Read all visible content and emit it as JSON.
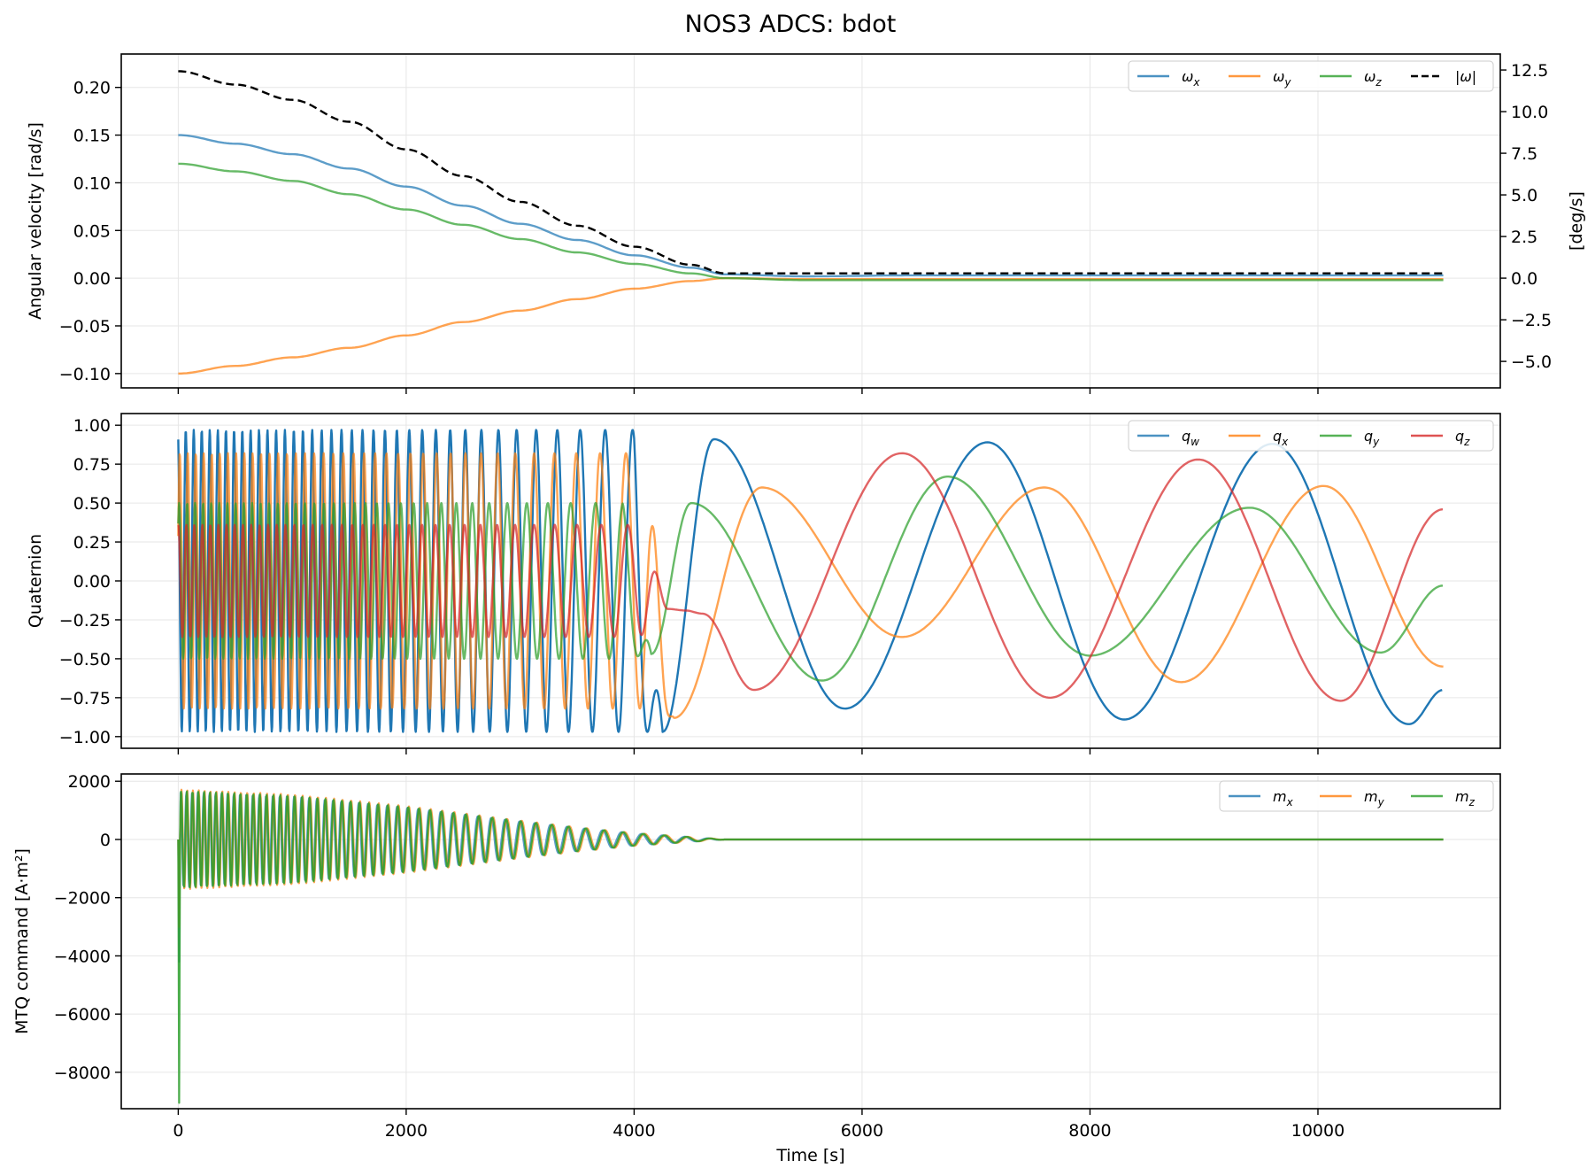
{
  "title": "NOS3 ADCS: bdot",
  "colors": {
    "blue": "#1f77b4",
    "orange": "#ff7f0e",
    "green": "#2ca02c",
    "red": "#d62728",
    "black": "#000000",
    "grid": "#e6e6e6"
  },
  "chart_data": [
    {
      "type": "line",
      "title": "",
      "xlabel": "",
      "ylabel": "Angular velocity [rad/s]",
      "y2label": "[deg/s]",
      "xlim": [
        -500,
        11600
      ],
      "ylim": [
        -0.115,
        0.235
      ],
      "y2lim": [
        -6.59,
        13.46
      ],
      "xticks": [
        0,
        2000,
        4000,
        6000,
        8000,
        10000
      ],
      "yticks": [
        -0.1,
        -0.05,
        0.0,
        0.05,
        0.1,
        0.15,
        0.2
      ],
      "ytick_labels": [
        "−0.10",
        "−0.05",
        "0.00",
        "0.05",
        "0.10",
        "0.15",
        "0.20"
      ],
      "y2ticks": [
        -5.0,
        -2.5,
        0.0,
        2.5,
        5.0,
        7.5,
        10.0,
        12.5
      ],
      "y2tick_labels": [
        "−5.0",
        "−2.5",
        "0.0",
        "2.5",
        "5.0",
        "7.5",
        "10.0",
        "12.5"
      ],
      "grid": true,
      "legend": "top-right",
      "series": [
        {
          "name": "ωx",
          "label_main": "ω",
          "label_sub": "x",
          "color": "#1f77b4",
          "style": "solid",
          "axis": "left",
          "x": [
            0,
            500,
            1000,
            1500,
            2000,
            2500,
            3000,
            3500,
            4000,
            4500,
            4800,
            5500,
            6500,
            8000,
            9500,
            11100
          ],
          "y": [
            0.15,
            0.141,
            0.13,
            0.115,
            0.096,
            0.076,
            0.057,
            0.04,
            0.024,
            0.011,
            0.004,
            0.002,
            0.003,
            0.003,
            0.003,
            0.003
          ]
        },
        {
          "name": "ωy",
          "label_main": "ω",
          "label_sub": "y",
          "color": "#ff7f0e",
          "style": "solid",
          "axis": "left",
          "x": [
            0,
            500,
            1000,
            1500,
            2000,
            2500,
            3000,
            3500,
            4000,
            4500,
            4800,
            5500,
            6500,
            8000,
            9500,
            11100
          ],
          "y": [
            -0.1,
            -0.092,
            -0.083,
            -0.073,
            -0.06,
            -0.046,
            -0.034,
            -0.022,
            -0.011,
            -0.003,
            0.0,
            -0.001,
            -0.001,
            -0.001,
            -0.001,
            -0.001
          ]
        },
        {
          "name": "ωz",
          "label_main": "ω",
          "label_sub": "z",
          "color": "#2ca02c",
          "style": "solid",
          "axis": "left",
          "x": [
            0,
            500,
            1000,
            1500,
            2000,
            2500,
            3000,
            3500,
            4000,
            4500,
            4800,
            5500,
            6500,
            8000,
            9500,
            11100
          ],
          "y": [
            0.12,
            0.112,
            0.102,
            0.088,
            0.072,
            0.056,
            0.041,
            0.027,
            0.015,
            0.005,
            0.0,
            -0.002,
            -0.002,
            -0.002,
            -0.002,
            -0.002
          ]
        },
        {
          "name": "|ω|",
          "label_main": "|ω|",
          "label_sub": "",
          "color": "#000000",
          "style": "dashed",
          "axis": "left",
          "x": [
            0,
            500,
            1000,
            1500,
            2000,
            2500,
            3000,
            3500,
            4000,
            4500,
            4800,
            5500,
            6500,
            8000,
            9500,
            11100
          ],
          "y": [
            0.217,
            0.203,
            0.187,
            0.164,
            0.135,
            0.107,
            0.08,
            0.055,
            0.033,
            0.014,
            0.005,
            0.005,
            0.005,
            0.005,
            0.005,
            0.005
          ]
        }
      ]
    },
    {
      "type": "line",
      "title": "",
      "xlabel": "",
      "ylabel": "Quaternion",
      "xlim": [
        -500,
        11600
      ],
      "ylim": [
        -1.075,
        1.075
      ],
      "xticks": [
        0,
        2000,
        4000,
        6000,
        8000,
        10000
      ],
      "yticks": [
        -1.0,
        -0.75,
        -0.5,
        -0.25,
        0.0,
        0.25,
        0.5,
        0.75,
        1.0
      ],
      "ytick_labels": [
        "−1.00",
        "−0.75",
        "−0.50",
        "−0.25",
        "0.00",
        "0.25",
        "0.50",
        "0.75",
        "1.00"
      ],
      "grid": true,
      "legend": "top-right",
      "oscillation_region": {
        "x_end": 4400,
        "period_start": 70,
        "period_end": 280,
        "amplitudes": {
          "qw": 0.97,
          "qx": 0.82,
          "qy": 0.5,
          "qz": 0.36
        }
      },
      "series": [
        {
          "name": "qw",
          "label_main": "q",
          "label_sub": "w",
          "color": "#1f77b4",
          "style": "solid",
          "x": [
            4250,
            4700,
            5850,
            7100,
            8300,
            9600,
            10800,
            11100
          ],
          "y": [
            -0.97,
            0.91,
            -0.82,
            0.89,
            -0.89,
            0.88,
            -0.92,
            -0.7
          ]
        },
        {
          "name": "qx",
          "label_main": "q",
          "label_sub": "x",
          "color": "#ff7f0e",
          "style": "solid",
          "x": [
            4350,
            5120,
            6350,
            7600,
            8800,
            10050,
            11100
          ],
          "y": [
            -0.88,
            0.6,
            -0.36,
            0.6,
            -0.65,
            0.61,
            -0.55
          ]
        },
        {
          "name": "qy",
          "label_main": "q",
          "label_sub": "y",
          "color": "#2ca02c",
          "style": "solid",
          "x": [
            4150,
            4500,
            5650,
            6750,
            8000,
            9400,
            10550,
            11100
          ],
          "y": [
            -0.47,
            0.5,
            -0.64,
            0.67,
            -0.48,
            0.47,
            -0.46,
            -0.03
          ]
        },
        {
          "name": "qz",
          "label_main": "q",
          "label_sub": "z",
          "color": "#d62728",
          "style": "solid",
          "x": [
            4300,
            4450,
            4600,
            5050,
            6350,
            7650,
            8950,
            10200,
            11100
          ],
          "y": [
            -0.18,
            -0.19,
            -0.21,
            -0.7,
            0.82,
            -0.75,
            0.78,
            -0.77,
            0.46
          ]
        }
      ]
    },
    {
      "type": "line",
      "title": "",
      "xlabel": "Time [s]",
      "ylabel": "MTQ command [A·m²]",
      "xlim": [
        -500,
        11600
      ],
      "ylim": [
        -9250,
        2250
      ],
      "xticks": [
        0,
        2000,
        4000,
        6000,
        8000,
        10000
      ],
      "yticks": [
        -8000,
        -6000,
        -4000,
        -2000,
        0,
        2000
      ],
      "ytick_labels": [
        "−8000",
        "−6000",
        "−4000",
        "−2000",
        "0",
        "2000"
      ],
      "xtick_labels": [
        "0",
        "2000",
        "4000",
        "6000",
        "8000",
        "10000"
      ],
      "grid": true,
      "legend": "top-right",
      "initial_spike": {
        "x": 0,
        "mz_min": -9050,
        "mx_min": -4200
      },
      "envelope": {
        "x": [
          0,
          1000,
          2000,
          3000,
          3500,
          4000,
          4400,
          4800,
          11100
        ],
        "amplitude": [
          1720,
          1550,
          1150,
          650,
          420,
          220,
          110,
          0,
          0
        ]
      },
      "series": [
        {
          "name": "mx",
          "label_main": "m",
          "label_sub": "x",
          "color": "#1f77b4",
          "style": "solid"
        },
        {
          "name": "my",
          "label_main": "m",
          "label_sub": "y",
          "color": "#ff7f0e",
          "style": "solid"
        },
        {
          "name": "mz",
          "label_main": "m",
          "label_sub": "z",
          "color": "#2ca02c",
          "style": "solid"
        }
      ]
    }
  ]
}
